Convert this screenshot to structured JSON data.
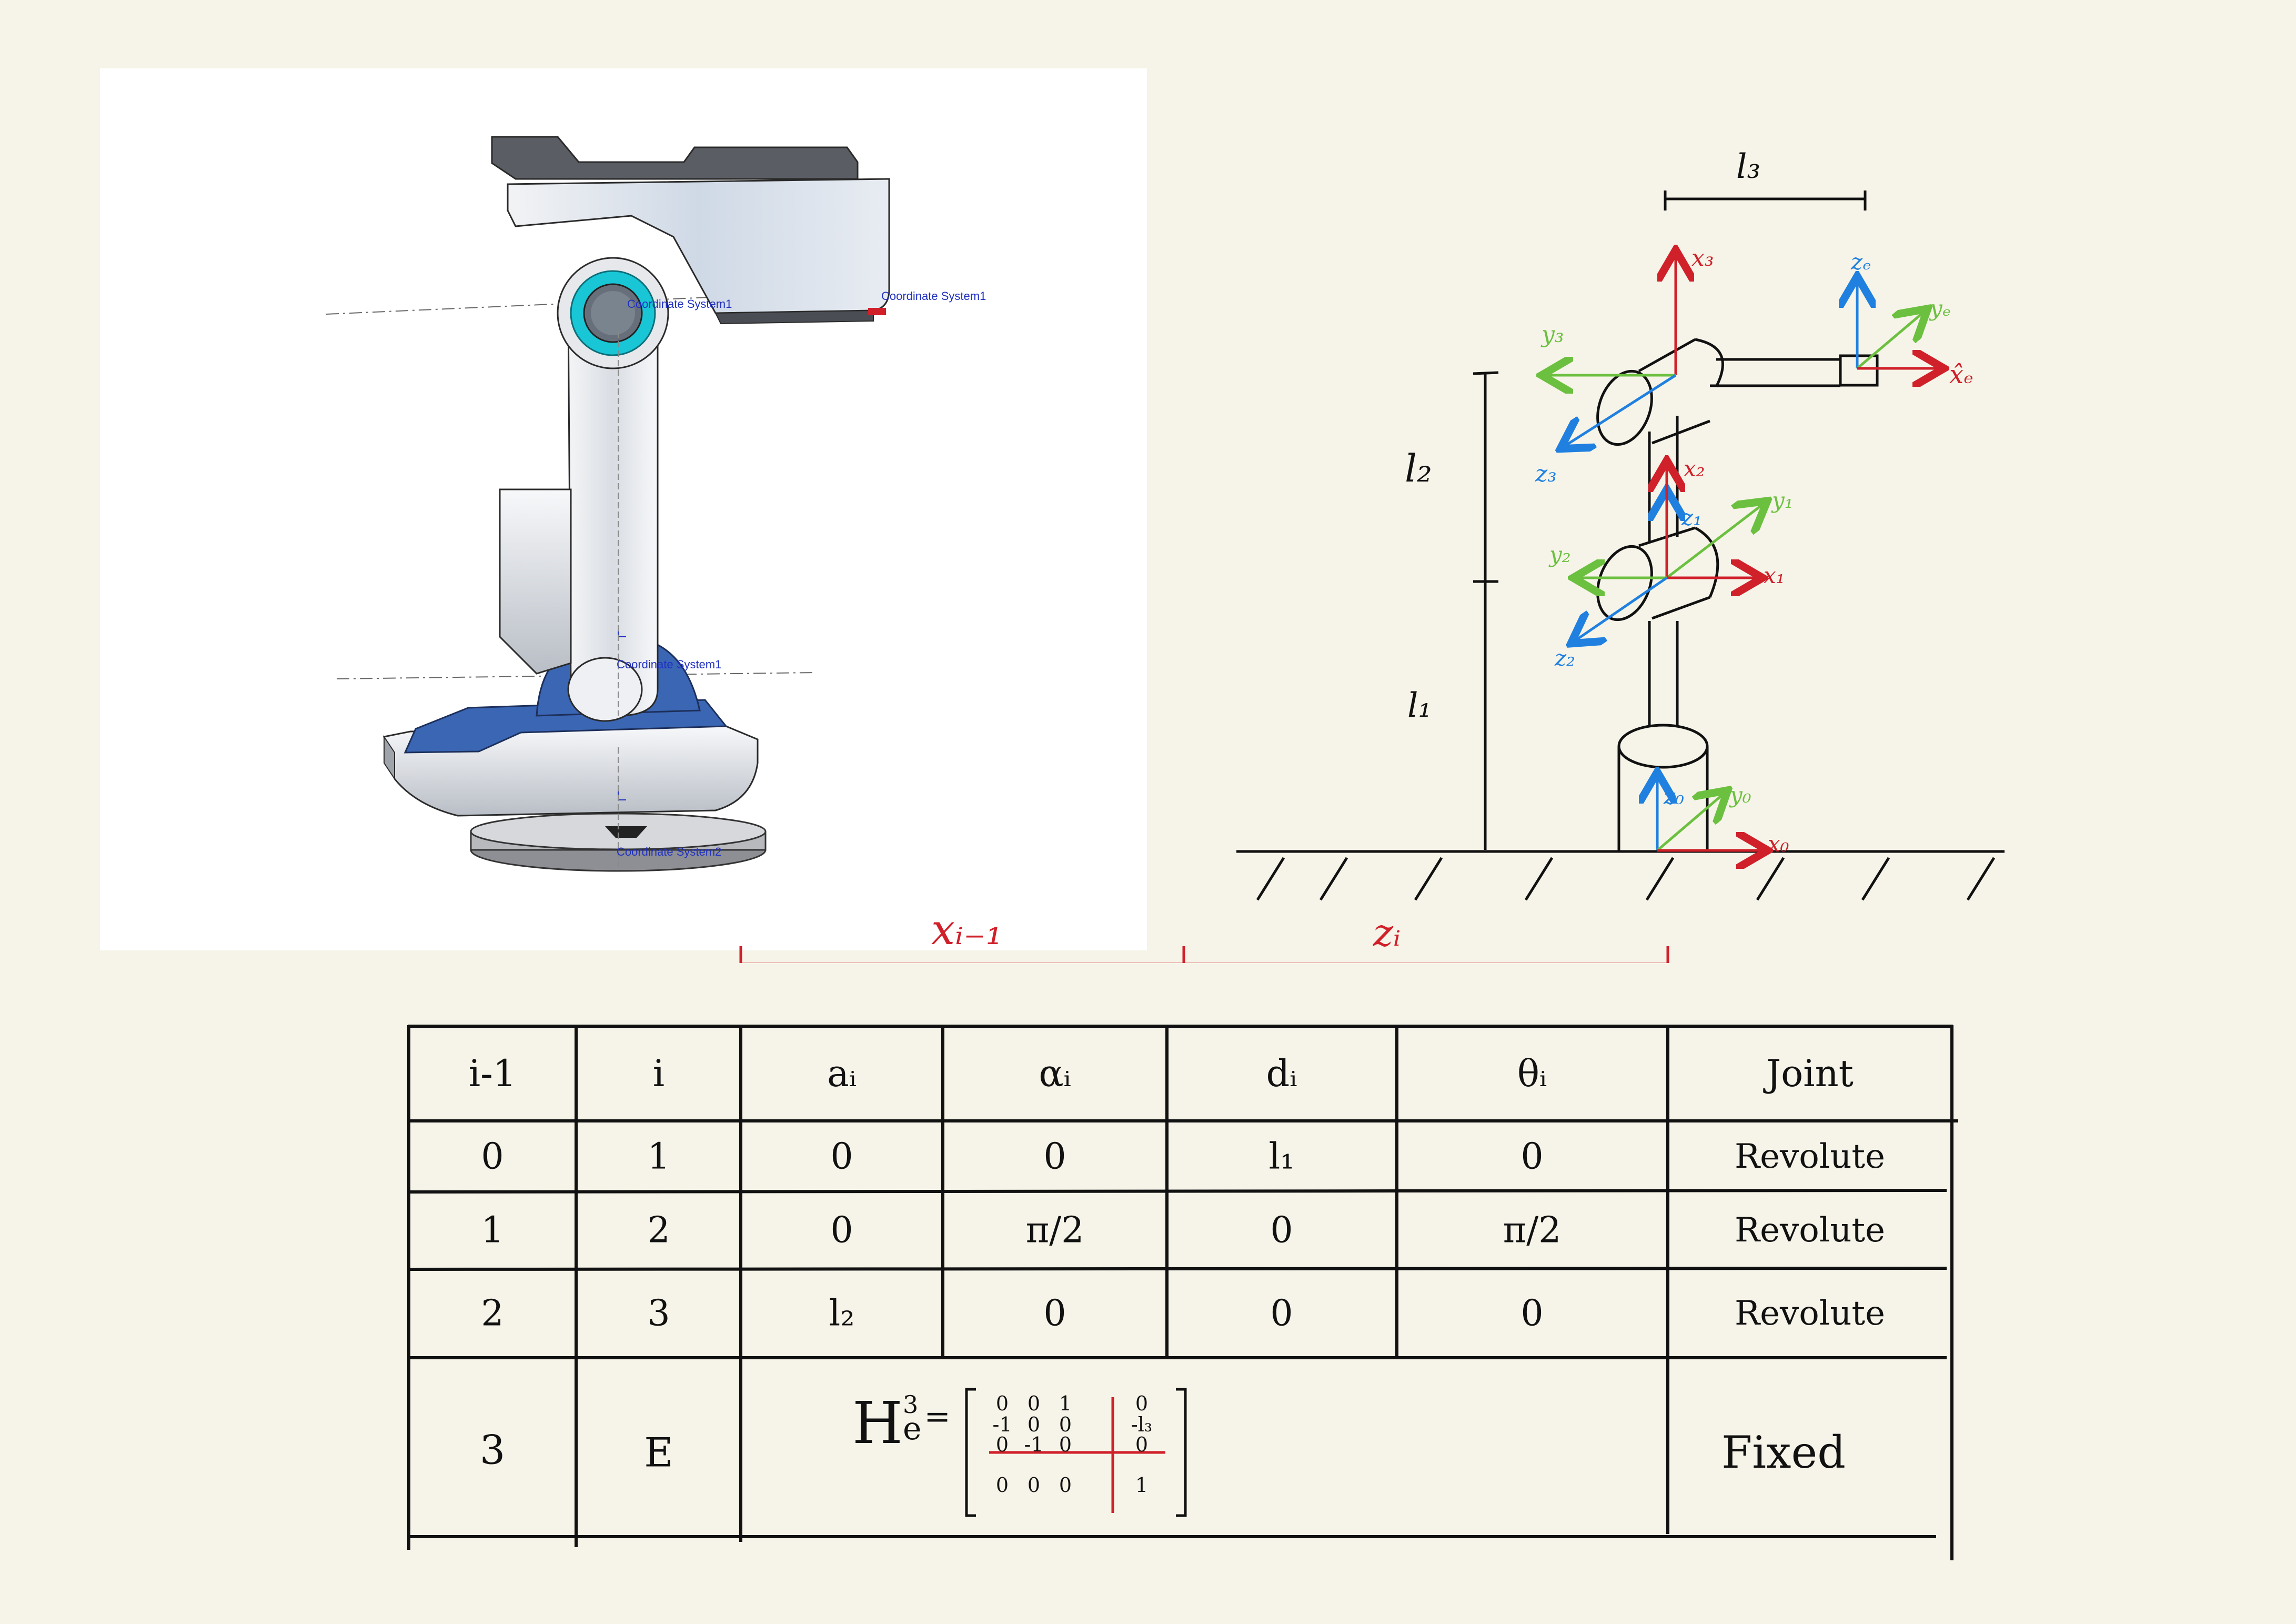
{
  "cad_view": {
    "coord_labels": [
      "Coordinate System1",
      "Coordinate System1",
      "Coordinate System1",
      "Coordinate System2"
    ],
    "colors": {
      "body": "#e9ebee",
      "base_blue": "#3a66b4",
      "joint_cyan": "#19c6d6",
      "outline": "#2a2a2a"
    }
  },
  "sketch": {
    "lengths": {
      "l1": "l₁",
      "l2": "l₂",
      "l3": "l₃"
    },
    "frame0": {
      "z": "z₀",
      "y": "y₀",
      "x": "x₀"
    },
    "frame1": {
      "z": "z₁",
      "y": "y₁",
      "x": "x₁"
    },
    "frame2": {
      "x": "x₂",
      "y": "y₂",
      "z": "z₂"
    },
    "frame3": {
      "x": "x₃",
      "y": "y₃",
      "z": "z₃"
    },
    "frame_e": {
      "z": "zₑ",
      "y": "yₑ",
      "x": "x̂ₑ"
    },
    "colors": {
      "x_axis": "#d0202a",
      "y_axis": "#6cc040",
      "z_axis": "#2080e0",
      "ink": "#111111"
    }
  },
  "bracket_labels": {
    "left": "xᵢ₋₁",
    "right": "zᵢ",
    "color": "#d0202a"
  },
  "dh_table": {
    "headers": [
      "i-1",
      "i",
      "aᵢ",
      "αᵢ",
      "dᵢ",
      "θᵢ",
      "Joint"
    ],
    "rows": [
      [
        "0",
        "1",
        "0",
        "0",
        "l₁",
        "0",
        "Revolute"
      ],
      [
        "1",
        "2",
        "0",
        "π/2",
        "0",
        "π/2",
        "Revolute"
      ],
      [
        "2",
        "3",
        "l₂",
        "0",
        "0",
        "0",
        "Revolute"
      ]
    ],
    "last_row": {
      "i_minus_1": "3",
      "i": "E",
      "joint": "Fixed",
      "matrix_label": "H",
      "matrix_sup": "3",
      "matrix_sub": "e",
      "matrix_eq": "=",
      "matrix": [
        [
          "0",
          "0",
          "1",
          "0"
        ],
        [
          "-1",
          "0",
          "0",
          "-l₃"
        ],
        [
          "0",
          "-1",
          "0",
          "0"
        ],
        [
          "0",
          "0",
          "0",
          "1"
        ]
      ]
    }
  }
}
